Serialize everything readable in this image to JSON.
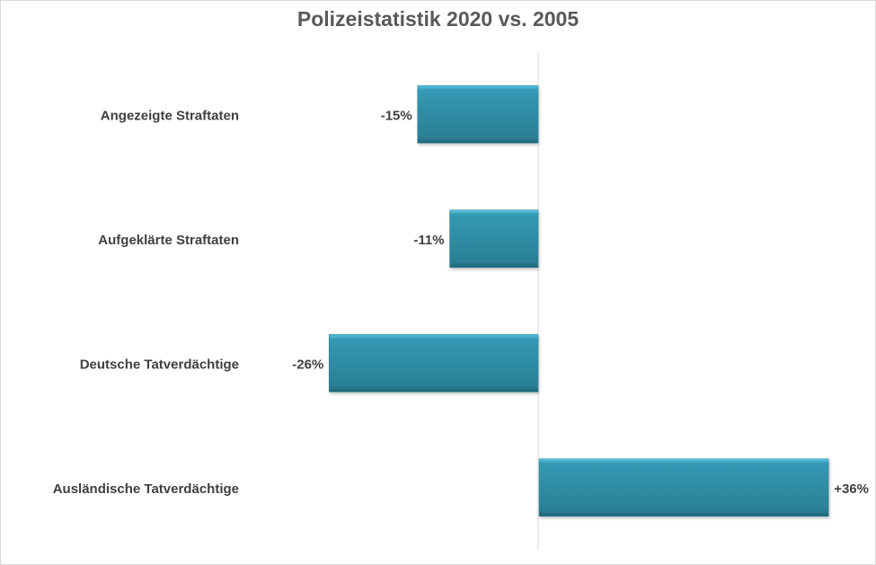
{
  "chart_data": {
    "type": "bar",
    "orientation": "horizontal",
    "title": "Polizeistatistik 2020 vs. 2005",
    "categories": [
      "Angezeigte Straftaten",
      "Aufgeklärte Straftaten",
      "Deutsche Tatverdächtige",
      "Ausländische Tatverdächtige"
    ],
    "values": [
      -15,
      -11,
      -26,
      36
    ],
    "data_labels": [
      "-15%",
      "-11%",
      "-26%",
      "+36%"
    ],
    "unit": "%",
    "xlabel": "",
    "ylabel": "",
    "xlim": [
      -30,
      40
    ],
    "grid": false,
    "legend": "none",
    "bar_color": "#2e8fa8",
    "text_color": "#404040"
  }
}
